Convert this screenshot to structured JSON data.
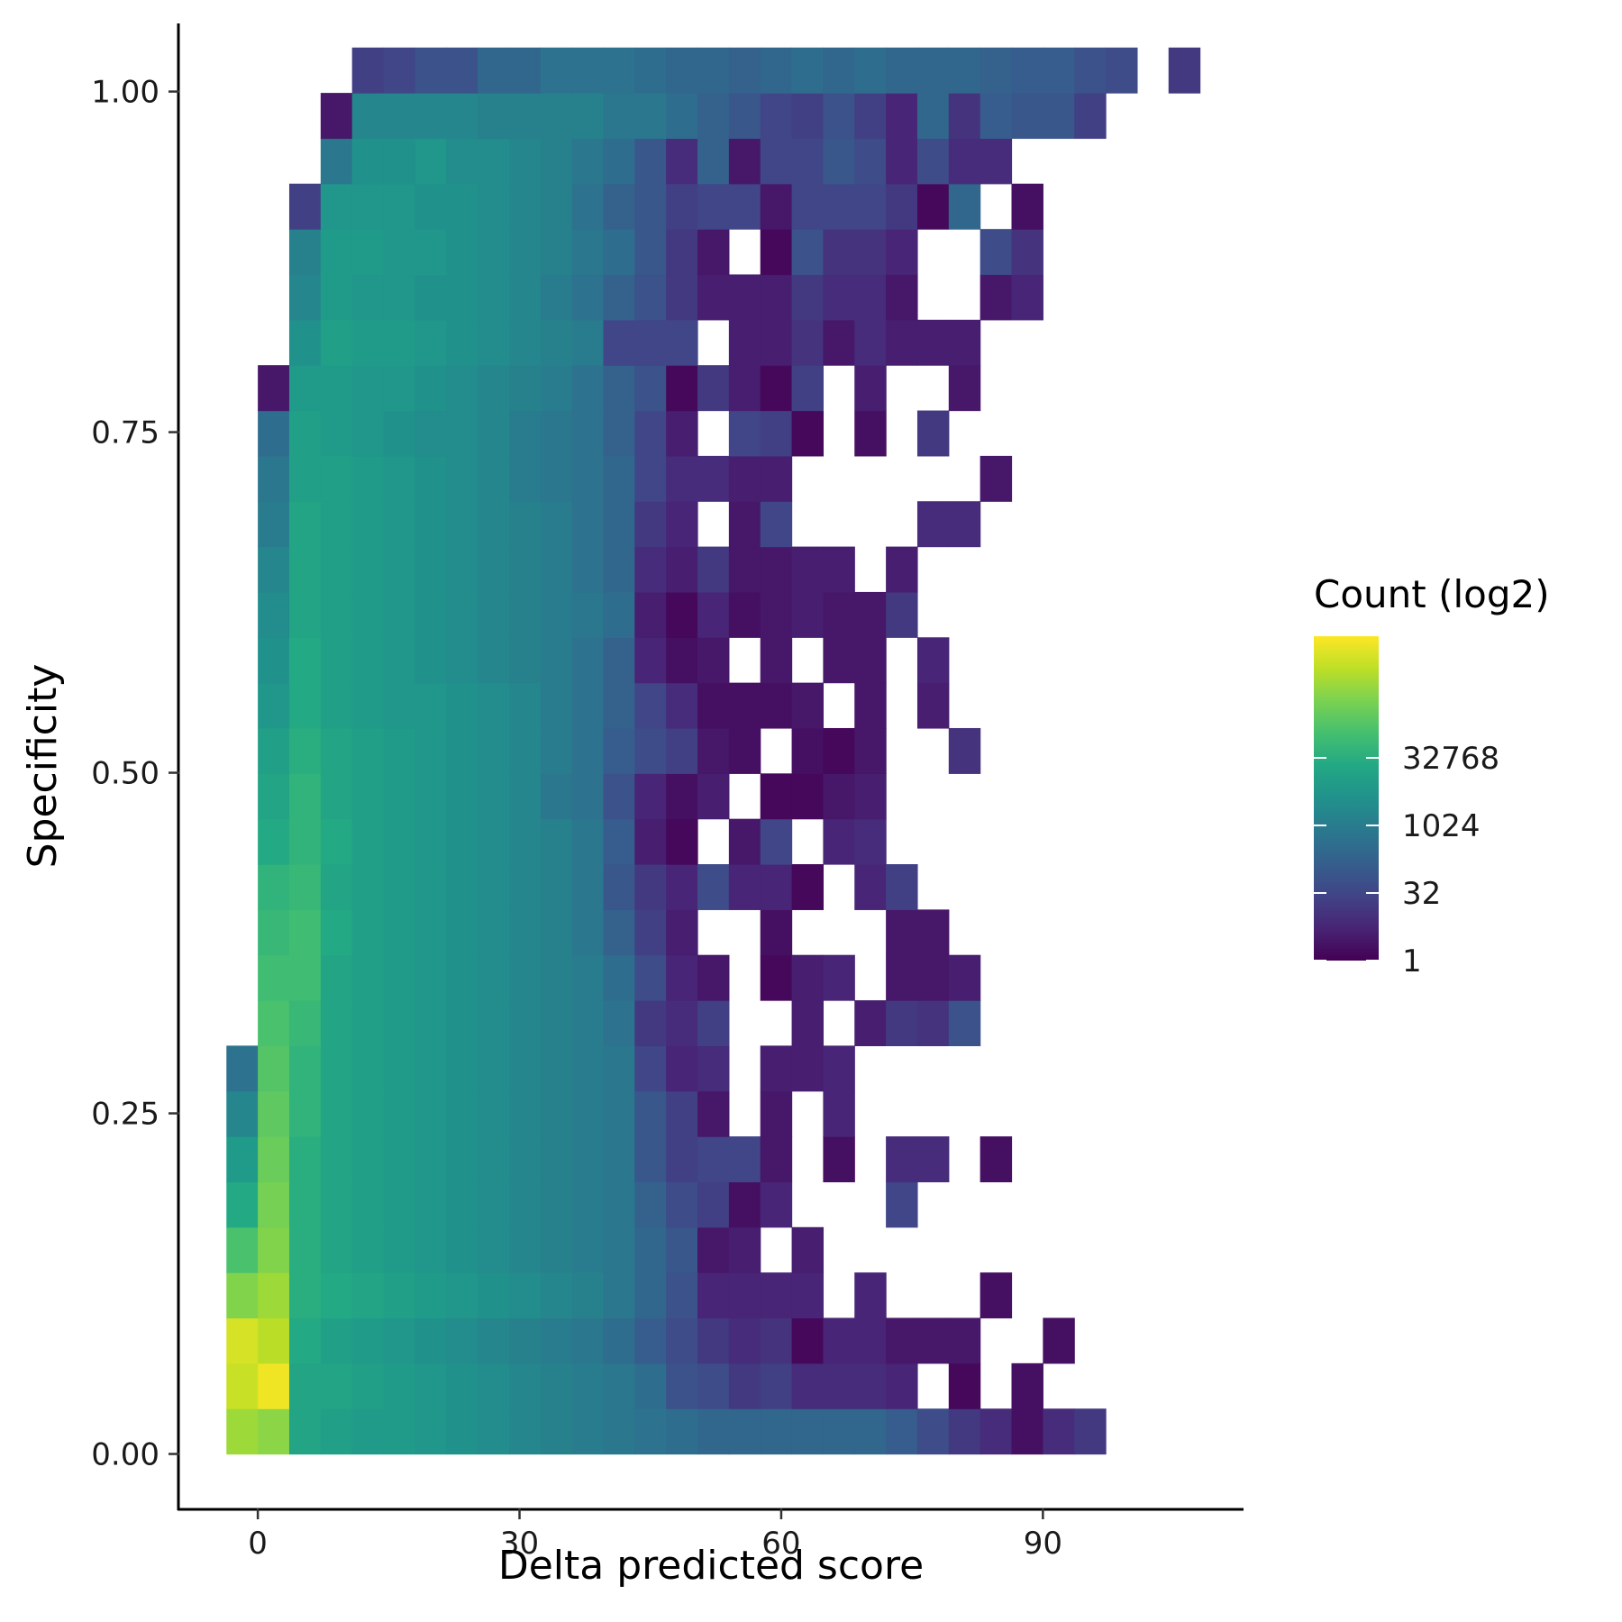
{
  "chart_data": {
    "type": "heatmap",
    "title": "",
    "xlabel": "Delta predicted score",
    "ylabel": "Specificity",
    "xlim": [
      -9,
      113
    ],
    "ylim": [
      -0.04,
      1.05
    ],
    "x_ticks": [
      0,
      30,
      60,
      90
    ],
    "x_tick_labels": [
      "0",
      "30",
      "60",
      "90"
    ],
    "y_ticks": [
      0,
      0.25,
      0.5,
      0.75,
      1.0
    ],
    "y_tick_labels": [
      "0.00",
      "0.25",
      "0.50",
      "0.75",
      "1.00"
    ],
    "grid": false,
    "bins": {
      "x_start": -3.6,
      "x_width": 3.6,
      "y_start": 0.0,
      "y_height": 0.0333,
      "levels": [
        [
          20.5,
          19.8,
          14.0,
          13.5,
          13.0,
          13.0,
          12.5,
          12.0,
          11.5,
          11.0,
          10.5,
          10.0,
          9.5,
          9.0,
          8.5,
          8.0,
          8.0,
          8.0,
          8.0,
          8.0,
          8.0,
          7.0,
          5.5,
          4.0,
          3.0,
          1.0,
          3.0,
          4.0
        ],
        [
          22.0,
          23.5,
          14.0,
          14.0,
          13.5,
          13.0,
          12.5,
          12.0,
          11.5,
          11.0,
          10.5,
          10.0,
          9.5,
          8.5,
          6.0,
          5.5,
          4.0,
          4.5,
          3.0,
          3.0,
          3.0,
          2.5,
          null,
          0.5,
          null,
          1.0
        ],
        [
          22.5,
          21.5,
          14.5,
          13.5,
          13.0,
          12.5,
          12.0,
          11.5,
          11.0,
          10.5,
          10.0,
          9.5,
          8.5,
          7.0,
          5.5,
          4.0,
          3.0,
          3.5,
          0.5,
          2.5,
          2.5,
          1.5,
          1.5,
          1.5,
          null,
          null,
          1.0
        ],
        [
          19.5,
          20.5,
          15.0,
          14.5,
          14.0,
          13.5,
          13.0,
          12.5,
          12.0,
          11.5,
          11.0,
          10.5,
          9.5,
          8.0,
          6.0,
          2.5,
          2.5,
          2.5,
          2.5,
          null,
          2.5,
          null,
          null,
          null,
          1.0
        ],
        [
          17.0,
          19.5,
          15.0,
          14.0,
          13.5,
          13.0,
          12.5,
          12.0,
          11.5,
          11.0,
          10.5,
          10.0,
          9.5,
          8.0,
          6.5,
          1.5,
          2.0,
          null,
          2.0
        ],
        [
          14.5,
          19.0,
          15.0,
          14.0,
          13.5,
          13.0,
          12.5,
          12.0,
          11.5,
          11.0,
          10.5,
          10.0,
          9.5,
          7.5,
          5.5,
          4.5,
          1.0,
          2.5,
          null,
          null,
          null,
          5.0
        ],
        [
          13.0,
          18.5,
          15.0,
          14.0,
          13.5,
          13.0,
          12.5,
          12.0,
          11.5,
          11.0,
          10.5,
          10.0,
          9.5,
          6.5,
          4.5,
          5.0,
          5.0,
          1.5,
          null,
          1.0,
          null,
          3.0,
          3.0,
          null,
          1.0
        ],
        [
          11.0,
          18.0,
          15.5,
          14.0,
          13.5,
          13.0,
          12.5,
          12.0,
          11.5,
          11.0,
          10.5,
          10.0,
          9.5,
          6.5,
          4.5,
          1.5,
          null,
          1.5,
          null,
          2.5
        ],
        [
          9.0,
          17.5,
          15.5,
          14.0,
          13.5,
          13.0,
          12.5,
          12.0,
          11.5,
          11.0,
          10.5,
          10.0,
          9.5,
          5.0,
          2.5,
          3.0,
          null,
          2.0,
          2.0,
          2.5
        ],
        [
          null,
          17.0,
          16.0,
          14.0,
          13.5,
          13.0,
          12.5,
          12.0,
          11.5,
          11.0,
          10.5,
          10.0,
          9.0,
          4.0,
          3.0,
          4.5,
          null,
          null,
          2.0,
          null,
          2.0,
          4.0,
          3.5,
          6.0
        ],
        [
          null,
          16.5,
          16.5,
          14.0,
          13.5,
          13.0,
          12.5,
          12.0,
          11.5,
          11.0,
          10.5,
          10.0,
          8.5,
          5.5,
          2.5,
          1.5,
          null,
          0.5,
          2.0,
          2.5,
          null,
          1.5,
          1.5,
          2.0
        ],
        [
          null,
          16.0,
          16.5,
          14.5,
          13.5,
          13.0,
          12.5,
          12.0,
          11.5,
          11.0,
          10.5,
          9.5,
          7.5,
          4.5,
          2.0,
          null,
          null,
          1.0,
          null,
          null,
          null,
          1.5,
          1.5
        ],
        [
          null,
          15.5,
          16.0,
          14.0,
          13.5,
          13.0,
          12.5,
          12.0,
          11.5,
          11.0,
          10.5,
          9.5,
          6.5,
          4.0,
          2.5,
          5.5,
          2.5,
          2.5,
          0.5,
          null,
          2.5,
          4.5
        ],
        [
          null,
          14.5,
          15.5,
          14.5,
          13.5,
          13.0,
          12.5,
          12.0,
          11.5,
          11.0,
          10.5,
          9.5,
          7.0,
          2.0,
          0.5,
          null,
          1.5,
          5.0,
          null,
          2.5,
          3.0
        ],
        [
          null,
          14.0,
          15.5,
          14.0,
          13.5,
          13.0,
          12.5,
          12.0,
          11.5,
          11.0,
          9.5,
          9.0,
          6.0,
          2.5,
          1.0,
          2.0,
          null,
          0.5,
          0.5,
          1.5,
          2.0
        ],
        [
          null,
          13.5,
          15.0,
          14.0,
          13.5,
          13.0,
          12.5,
          12.0,
          11.5,
          11.0,
          10.0,
          9.0,
          7.0,
          5.5,
          4.5,
          1.5,
          1.0,
          null,
          1.0,
          0.5,
          1.5,
          null,
          null,
          3.5
        ],
        [
          null,
          12.5,
          14.5,
          13.5,
          13.0,
          12.5,
          12.5,
          12.0,
          11.5,
          11.0,
          10.0,
          9.0,
          7.5,
          5.0,
          3.0,
          1.0,
          1.0,
          1.0,
          1.5,
          null,
          1.5,
          null,
          2.0
        ],
        [
          null,
          12.0,
          14.5,
          13.5,
          13.0,
          12.5,
          12.0,
          11.5,
          11.0,
          10.5,
          10.0,
          9.0,
          7.5,
          2.5,
          1.0,
          1.5,
          null,
          1.5,
          null,
          1.5,
          1.5,
          null,
          2.5
        ],
        [
          null,
          11.5,
          14.0,
          13.5,
          13.0,
          12.5,
          12.0,
          11.5,
          11.0,
          10.5,
          10.0,
          9.5,
          8.5,
          2.0,
          0.5,
          2.5,
          1.0,
          1.5,
          2.0,
          1.5,
          1.5,
          4.0
        ],
        [
          null,
          11.0,
          14.0,
          13.5,
          13.0,
          12.5,
          12.0,
          11.5,
          11.0,
          10.5,
          10.0,
          9.0,
          8.0,
          3.0,
          2.0,
          4.0,
          1.5,
          1.5,
          2.0,
          2.0,
          null,
          2.0
        ],
        [
          null,
          10.0,
          14.0,
          13.5,
          13.0,
          12.5,
          12.0,
          11.5,
          11.0,
          10.5,
          10.0,
          9.0,
          8.0,
          4.0,
          2.5,
          null,
          1.5,
          5.0,
          null,
          null,
          null,
          null,
          3.0,
          3.0
        ],
        [
          null,
          9.5,
          13.5,
          13.5,
          13.0,
          12.5,
          12.0,
          11.5,
          11.0,
          10.0,
          9.5,
          9.0,
          8.0,
          5.0,
          3.0,
          3.0,
          2.0,
          2.0,
          null,
          null,
          null,
          null,
          null,
          null,
          1.5
        ],
        [
          null,
          8.5,
          13.5,
          13.0,
          12.5,
          12.0,
          11.5,
          11.5,
          11.0,
          10.0,
          9.5,
          9.0,
          7.5,
          5.0,
          2.0,
          null,
          5.0,
          4.5,
          0.5,
          null,
          1.0,
          null,
          4.0
        ],
        [
          null,
          1.5,
          13.0,
          13.0,
          12.5,
          12.5,
          12.0,
          11.5,
          11.0,
          10.5,
          10.0,
          9.0,
          7.5,
          6.0,
          0.5,
          4.0,
          2.0,
          0.5,
          4.5,
          null,
          2.0,
          null,
          null,
          1.5
        ],
        [
          null,
          null,
          12.0,
          13.5,
          13.0,
          13.0,
          12.5,
          12.0,
          11.5,
          11.0,
          10.5,
          10.0,
          5.0,
          5.0,
          5.0,
          null,
          2.0,
          2.0,
          3.5,
          1.5,
          3.0,
          2.0,
          2.0,
          2.0
        ],
        [
          null,
          null,
          11.0,
          13.0,
          12.5,
          12.5,
          12.0,
          12.0,
          11.5,
          11.0,
          10.0,
          9.0,
          7.5,
          6.0,
          4.0,
          2.0,
          2.0,
          2.0,
          4.0,
          3.0,
          3.0,
          1.5,
          null,
          null,
          1.5,
          2.5
        ],
        [
          null,
          null,
          10.5,
          13.0,
          13.0,
          12.5,
          12.5,
          12.0,
          11.5,
          11.0,
          10.5,
          9.5,
          8.5,
          6.5,
          4.0,
          1.5,
          null,
          0.5,
          6.0,
          3.5,
          3.5,
          2.5,
          null,
          null,
          5.5,
          3.5
        ],
        [
          null,
          null,
          4.5,
          12.5,
          12.5,
          12.5,
          12.0,
          12.0,
          11.5,
          11.0,
          10.5,
          9.0,
          7.5,
          6.5,
          4.5,
          5.0,
          5.0,
          1.5,
          5.0,
          5.0,
          5.0,
          4.0,
          0.5,
          8.0,
          null,
          1.0
        ],
        [
          null,
          null,
          null,
          9.5,
          12.0,
          12.0,
          12.5,
          11.5,
          11.5,
          11.0,
          10.5,
          9.5,
          8.5,
          6.5,
          3.0,
          7.5,
          1.5,
          5.0,
          5.0,
          6.5,
          5.5,
          2.5,
          5.5,
          3.0,
          3.0
        ],
        [
          null,
          null,
          null,
          1.5,
          11.0,
          11.0,
          11.0,
          11.0,
          10.5,
          10.5,
          10.5,
          10.5,
          9.5,
          9.5,
          8.5,
          7.5,
          6.5,
          5.0,
          4.5,
          6.0,
          4.5,
          2.5,
          8.0,
          3.5,
          7.0,
          6.5,
          6.5,
          4.5
        ],
        [
          null,
          null,
          null,
          null,
          4.5,
          5.0,
          6.0,
          6.0,
          8.0,
          8.0,
          9.0,
          9.0,
          9.0,
          8.5,
          8.0,
          8.0,
          7.5,
          8.0,
          8.5,
          8.0,
          8.5,
          8.0,
          8.0,
          8.0,
          7.5,
          7.0,
          7.0,
          6.0,
          5.5,
          null,
          4.0
        ]
      ]
    },
    "legend": {
      "title": "Count (log2)",
      "position": "right",
      "colormap": "viridis",
      "min_level": 0,
      "max_level": 24,
      "ticks": [
        {
          "level": 0,
          "label": "1"
        },
        {
          "level": 5,
          "label": "32"
        },
        {
          "level": 10,
          "label": "1024"
        },
        {
          "level": 15,
          "label": "32768"
        }
      ]
    }
  }
}
